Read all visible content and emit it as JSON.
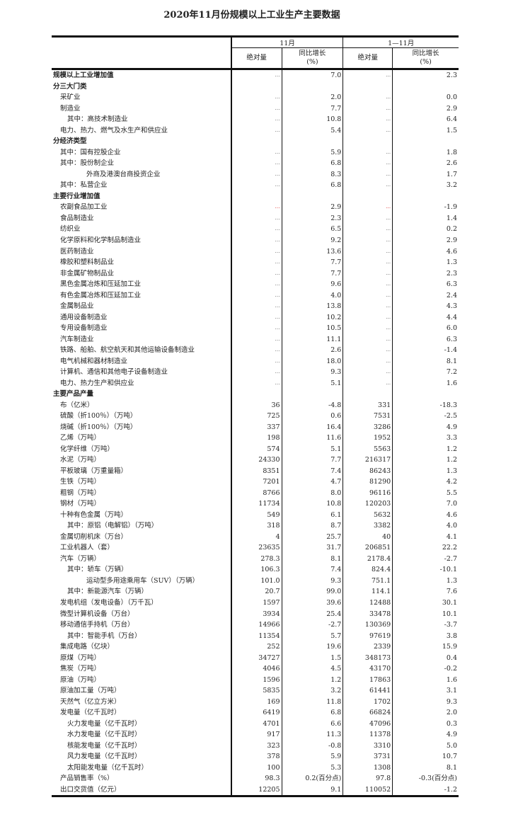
{
  "title": "2020年11月份规模以上工业生产主要数据",
  "header": {
    "period1": "11月",
    "period2": "1—11月",
    "abs": "绝对量",
    "yoy": "同比增长",
    "yoy_unit": "(%)"
  },
  "rows": [
    {
      "label": "规模以上工业增加值",
      "indent": 0,
      "bold": true,
      "v": [
        "…",
        "7.0",
        "…",
        "2.3"
      ]
    },
    {
      "label": "分三大门类",
      "indent": 0,
      "bold": true,
      "v": [
        "",
        "",
        "",
        ""
      ]
    },
    {
      "label": "采矿业",
      "indent": 1,
      "v": [
        "…",
        "2.0",
        "…",
        "0.0"
      ]
    },
    {
      "label": "制造业",
      "indent": 1,
      "v": [
        "…",
        "7.7",
        "…",
        "2.9"
      ]
    },
    {
      "label": "其中：高技术制造业",
      "indent": 2,
      "v": [
        "…",
        "10.8",
        "…",
        "6.4"
      ]
    },
    {
      "label": "电力、热力、燃气及水生产和供应业",
      "indent": 1,
      "v": [
        "…",
        "5.4",
        "…",
        "1.5"
      ]
    },
    {
      "label": "分经济类型",
      "indent": 0,
      "bold": true,
      "v": [
        "",
        "",
        "",
        ""
      ]
    },
    {
      "label": "其中：国有控股企业",
      "indent": 1,
      "v": [
        "…",
        "5.9",
        "…",
        "1.8"
      ]
    },
    {
      "label": "其中：股份制企业",
      "indent": 1,
      "v": [
        "…",
        "6.8",
        "…",
        "2.6"
      ]
    },
    {
      "label": "外商及港澳台商投资企业",
      "indent": 3,
      "v": [
        "…",
        "8.3",
        "…",
        "1.7"
      ]
    },
    {
      "label": "其中：私营企业",
      "indent": 1,
      "v": [
        "…",
        "6.8",
        "…",
        "3.2"
      ]
    },
    {
      "label": "主要行业增加值",
      "indent": 0,
      "bold": true,
      "v": [
        "",
        "",
        "",
        ""
      ]
    },
    {
      "label": "农副食品加工业",
      "indent": 1,
      "red": true,
      "v": [
        "…",
        "2.9",
        "…",
        "-1.9"
      ]
    },
    {
      "label": "食品制造业",
      "indent": 1,
      "v": [
        "…",
        "2.3",
        "…",
        "1.4"
      ]
    },
    {
      "label": "纺织业",
      "indent": 1,
      "v": [
        "…",
        "6.5",
        "…",
        "0.2"
      ]
    },
    {
      "label": "化学原料和化学制品制造业",
      "indent": 1,
      "v": [
        "…",
        "9.2",
        "…",
        "2.9"
      ]
    },
    {
      "label": "医药制造业",
      "indent": 1,
      "v": [
        "…",
        "13.6",
        "…",
        "4.6"
      ]
    },
    {
      "label": "橡胶和塑料制品业",
      "indent": 1,
      "v": [
        "…",
        "7.7",
        "…",
        "1.3"
      ]
    },
    {
      "label": "非金属矿物制品业",
      "indent": 1,
      "v": [
        "…",
        "7.7",
        "…",
        "2.3"
      ]
    },
    {
      "label": "黑色金属冶炼和压延加工业",
      "indent": 1,
      "v": [
        "…",
        "9.6",
        "…",
        "6.3"
      ]
    },
    {
      "label": "有色金属冶炼和压延加工业",
      "indent": 1,
      "v": [
        "…",
        "4.0",
        "…",
        "2.4"
      ]
    },
    {
      "label": "金属制品业",
      "indent": 1,
      "v": [
        "…",
        "13.8",
        "…",
        "4.3"
      ]
    },
    {
      "label": "通用设备制造业",
      "indent": 1,
      "v": [
        "…",
        "10.2",
        "…",
        "4.4"
      ]
    },
    {
      "label": "专用设备制造业",
      "indent": 1,
      "v": [
        "…",
        "10.5",
        "…",
        "6.0"
      ]
    },
    {
      "label": "汽车制造业",
      "indent": 1,
      "v": [
        "…",
        "11.1",
        "…",
        "6.3"
      ]
    },
    {
      "label": "铁路、船舶、航空航天和其他运输设备制造业",
      "indent": 1,
      "v": [
        "…",
        "2.6",
        "…",
        "-1.4"
      ]
    },
    {
      "label": "电气机械和器材制造业",
      "indent": 1,
      "v": [
        "…",
        "18.0",
        "…",
        "8.1"
      ]
    },
    {
      "label": "计算机、通信和其他电子设备制造业",
      "indent": 1,
      "v": [
        "…",
        "9.3",
        "…",
        "7.2"
      ]
    },
    {
      "label": "电力、热力生产和供应业",
      "indent": 1,
      "v": [
        "…",
        "5.1",
        "…",
        "1.6"
      ]
    },
    {
      "label": "主要产品产量",
      "indent": 0,
      "bold": true,
      "v": [
        "",
        "",
        "",
        ""
      ]
    },
    {
      "label": "布（亿米）",
      "indent": 1,
      "v": [
        "36",
        "-4.8",
        "331",
        "-18.3"
      ]
    },
    {
      "label": "硫酸（折100％）（万吨）",
      "indent": 1,
      "v": [
        "725",
        "0.6",
        "7531",
        "-2.5"
      ]
    },
    {
      "label": "烧碱（折100％）（万吨）",
      "indent": 1,
      "v": [
        "337",
        "16.4",
        "3286",
        "4.9"
      ]
    },
    {
      "label": "乙烯（万吨）",
      "indent": 1,
      "v": [
        "198",
        "11.6",
        "1952",
        "3.3"
      ]
    },
    {
      "label": "化学纤维（万吨）",
      "indent": 1,
      "v": [
        "574",
        "5.1",
        "5563",
        "1.2"
      ]
    },
    {
      "label": "水泥（万吨）",
      "indent": 1,
      "v": [
        "24330",
        "7.7",
        "216317",
        "1.2"
      ]
    },
    {
      "label": "平板玻璃（万重量箱）",
      "indent": 1,
      "v": [
        "8351",
        "7.4",
        "86243",
        "1.3"
      ]
    },
    {
      "label": "生铁（万吨）",
      "indent": 1,
      "v": [
        "7201",
        "4.7",
        "81290",
        "4.2"
      ]
    },
    {
      "label": "粗钢（万吨）",
      "indent": 1,
      "v": [
        "8766",
        "8.0",
        "96116",
        "5.5"
      ]
    },
    {
      "label": "钢材（万吨）",
      "indent": 1,
      "v": [
        "11734",
        "10.8",
        "120203",
        "7.0"
      ]
    },
    {
      "label": "十种有色金属（万吨）",
      "indent": 1,
      "v": [
        "549",
        "6.1",
        "5632",
        "4.6"
      ]
    },
    {
      "label": "其中：原铝（电解铝）（万吨）",
      "indent": 2,
      "v": [
        "318",
        "8.7",
        "3382",
        "4.0"
      ]
    },
    {
      "label": "金属切削机床（万台）",
      "indent": 1,
      "v": [
        "4",
        "25.7",
        "40",
        "4.1"
      ]
    },
    {
      "label": "工业机器人（套）",
      "indent": 1,
      "v": [
        "23635",
        "31.7",
        "206851",
        "22.2"
      ]
    },
    {
      "label": "汽车（万辆）",
      "indent": 1,
      "v": [
        "278.3",
        "8.1",
        "2178.4",
        "-2.7"
      ]
    },
    {
      "label": "其中：轿车（万辆）",
      "indent": 2,
      "v": [
        "106.3",
        "7.4",
        "824.4",
        "-10.1"
      ]
    },
    {
      "label": "运动型多用途乘用车（SUV）（万辆）",
      "indent": 3,
      "v": [
        "101.0",
        "9.3",
        "751.1",
        "1.3"
      ]
    },
    {
      "label": "其中：新能源汽车（万辆）",
      "indent": 2,
      "v": [
        "20.7",
        "99.0",
        "114.1",
        "7.6"
      ]
    },
    {
      "label": "发电机组（发电设备）（万千瓦）",
      "indent": 1,
      "v": [
        "1597",
        "39.6",
        "12488",
        "30.1"
      ]
    },
    {
      "label": "微型计算机设备（万台）",
      "indent": 1,
      "v": [
        "3934",
        "25.4",
        "33478",
        "10.1"
      ]
    },
    {
      "label": "移动通信手持机（万台）",
      "indent": 1,
      "v": [
        "14966",
        "-2.7",
        "130369",
        "-3.7"
      ]
    },
    {
      "label": "其中：智能手机（万台）",
      "indent": 2,
      "v": [
        "11354",
        "5.7",
        "97619",
        "3.8"
      ]
    },
    {
      "label": "集成电路（亿块）",
      "indent": 1,
      "v": [
        "252",
        "19.6",
        "2339",
        "15.9"
      ]
    },
    {
      "label": "原煤（万吨）",
      "indent": 1,
      "v": [
        "34727",
        "1.5",
        "348173",
        "0.4"
      ]
    },
    {
      "label": "焦炭（万吨）",
      "indent": 1,
      "v": [
        "4046",
        "4.5",
        "43170",
        "-0.2"
      ]
    },
    {
      "label": "原油（万吨）",
      "indent": 1,
      "v": [
        "1596",
        "1.2",
        "17863",
        "1.6"
      ]
    },
    {
      "label": "原油加工量（万吨）",
      "indent": 1,
      "v": [
        "5835",
        "3.2",
        "61441",
        "3.1"
      ]
    },
    {
      "label": "天然气（亿立方米）",
      "indent": 1,
      "v": [
        "169",
        "11.8",
        "1702",
        "9.3"
      ]
    },
    {
      "label": "发电量（亿千瓦时）",
      "indent": 1,
      "v": [
        "6419",
        "6.8",
        "66824",
        "2.0"
      ]
    },
    {
      "label": "火力发电量（亿千瓦时）",
      "indent": 2,
      "v": [
        "4701",
        "6.6",
        "47096",
        "0.3"
      ]
    },
    {
      "label": "水力发电量（亿千瓦时）",
      "indent": 2,
      "v": [
        "917",
        "11.3",
        "11378",
        "4.9"
      ]
    },
    {
      "label": "核能发电量（亿千瓦时）",
      "indent": 2,
      "v": [
        "323",
        "-0.8",
        "3310",
        "5.0"
      ]
    },
    {
      "label": "风力发电量（亿千瓦时）",
      "indent": 2,
      "v": [
        "378",
        "5.9",
        "3731",
        "10.7"
      ]
    },
    {
      "label": "太阳能发电量（亿千瓦时）",
      "indent": 2,
      "v": [
        "100",
        "5.3",
        "1308",
        "8.1"
      ]
    },
    {
      "label": "产品销售率（%）",
      "indent": 1,
      "v": [
        "98.3",
        "0.2(百分点)",
        "97.8",
        "-0.3(百分点)"
      ]
    },
    {
      "label": "出口交货值（亿元）",
      "indent": 1,
      "v": [
        "12205",
        "9.1",
        "110052",
        "-1.2"
      ]
    }
  ]
}
